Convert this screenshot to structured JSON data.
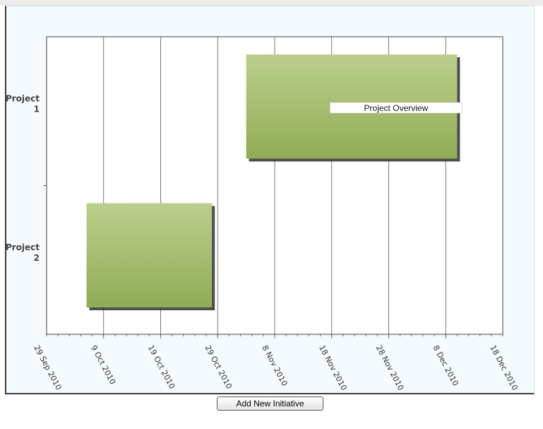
{
  "chart_data": {
    "type": "gantt",
    "title": "",
    "x_axis": {
      "type": "date",
      "min": "2010-09-29",
      "max": "2010-12-18",
      "tick_labels": [
        "29 Sep 2010",
        "9 Oct 2010",
        "19 Oct 2010",
        "29 Oct 2010",
        "8 Nov 2010",
        "18 Nov 2010",
        "28 Nov 2010",
        "8 Dec 2010",
        "18 Dec 2010"
      ],
      "tick_dates": [
        "2010-09-29",
        "2010-10-09",
        "2010-10-19",
        "2010-10-29",
        "2010-11-08",
        "2010-11-18",
        "2010-11-28",
        "2010-12-08",
        "2010-12-18"
      ]
    },
    "categories": [
      "Project 1",
      "Project 2"
    ],
    "category_label_lines": [
      [
        "Project",
        "1"
      ],
      [
        "Project",
        "2"
      ]
    ],
    "tasks": [
      {
        "category": "Project 1",
        "start": "2010-11-03",
        "end": "2010-12-10",
        "label": "Project Overview"
      },
      {
        "category": "Project 2",
        "start": "2010-10-06",
        "end": "2010-10-28",
        "label": ""
      }
    ],
    "grid": true,
    "bar_color_top": "#bccf8e",
    "bar_color_bottom": "#8fac55"
  },
  "add_button_label": "Add New Initiative"
}
